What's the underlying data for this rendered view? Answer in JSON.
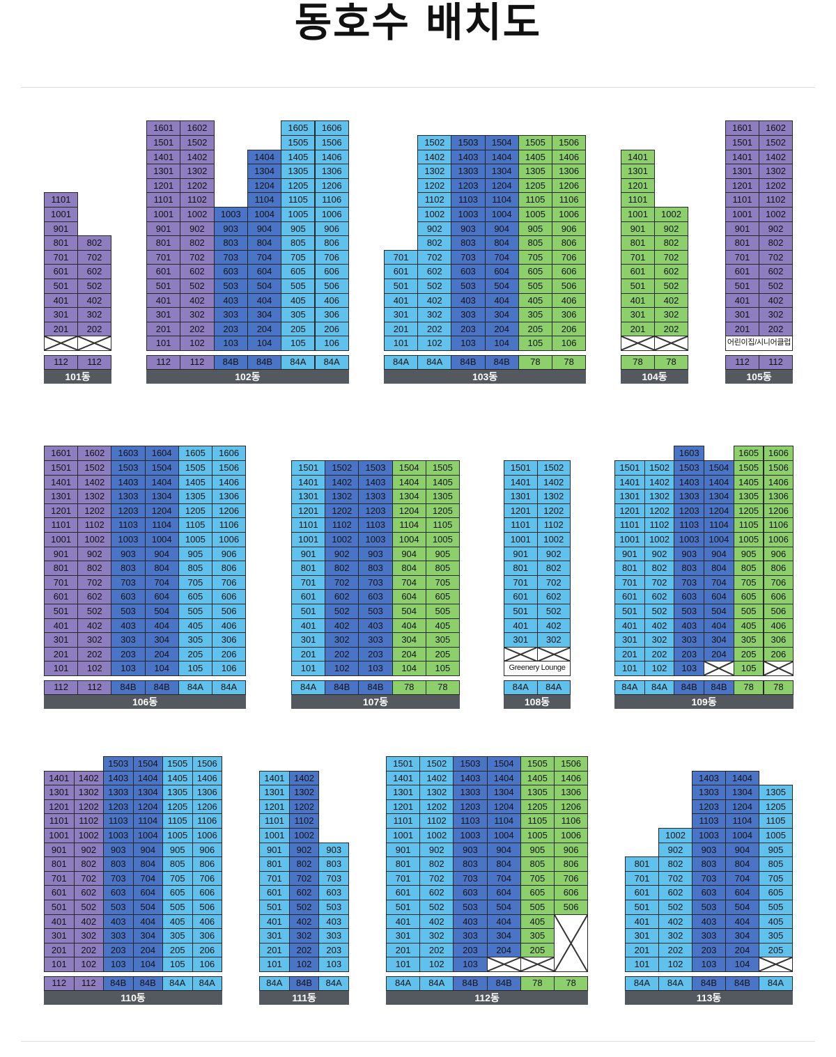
{
  "title": "동호수 배치도",
  "colors": {
    "p": "#8e7dbf",
    "d": "#4a75c6",
    "l": "#5fc1ec",
    "g": "#8ccf6b"
  },
  "buildings": [
    {
      "name": "101동",
      "cols": 2,
      "floors": 11,
      "units": [
        [
          "p",
          "p"
        ],
        [
          "p",
          "p"
        ]
      ],
      "heights": [
        11,
        8
      ],
      "overrides": {
        "1-0": "x",
        "1-1": "x"
      },
      "types": [
        "112",
        "112"
      ]
    },
    {
      "name": "102동",
      "cols": 6,
      "floors": 16,
      "units": [
        [
          "p",
          "p",
          "d",
          "d",
          "l",
          "l"
        ]
      ],
      "heights": [
        16,
        16,
        10,
        14,
        16,
        16
      ],
      "overrides": {},
      "types": [
        "112",
        "112",
        "84B",
        "84B",
        "84A",
        "84A"
      ]
    },
    {
      "name": "103동",
      "cols": 6,
      "floors": 15,
      "units": [
        [
          "l",
          "l",
          "d",
          "d",
          "g",
          "g"
        ]
      ],
      "heights": [
        7,
        15,
        15,
        15,
        15,
        15
      ],
      "overrides": {},
      "types": [
        "84A",
        "84A",
        "84B",
        "84B",
        "78",
        "78"
      ]
    },
    {
      "name": "104동",
      "cols": 2,
      "floors": 14,
      "units": [
        [
          "g",
          "g"
        ]
      ],
      "heights": [
        14,
        10
      ],
      "overrides": {
        "1-0": "x",
        "1-1": "x"
      },
      "types": [
        "78",
        "78"
      ]
    },
    {
      "name": "105동",
      "cols": 2,
      "floors": 16,
      "units": [
        [
          "p",
          "p"
        ]
      ],
      "heights": [
        16,
        16
      ],
      "overrides": {},
      "spans": [
        {
          "floor": 1,
          "col": 0,
          "span": 2,
          "label": "어린이집/시니어클럽"
        }
      ],
      "types": [
        "112",
        "112"
      ]
    },
    {
      "name": "106동",
      "cols": 6,
      "floors": 16,
      "units": [
        [
          "p",
          "p",
          "d",
          "d",
          "l",
          "l"
        ]
      ],
      "heights": [
        16,
        16,
        16,
        16,
        16,
        16
      ],
      "overrides": {},
      "types": [
        "112",
        "112",
        "84B",
        "84B",
        "84A",
        "84A"
      ]
    },
    {
      "name": "107동",
      "cols": 5,
      "floors": 15,
      "units": [
        [
          "l",
          "d",
          "d",
          "g",
          "g"
        ]
      ],
      "heights": [
        15,
        15,
        15,
        15,
        15
      ],
      "overrides": {},
      "types": [
        "84A",
        "84B",
        "84B",
        "78",
        "78"
      ]
    },
    {
      "name": "108동",
      "cols": 2,
      "floors": 15,
      "units": [
        [
          "l",
          "l"
        ]
      ],
      "heights": [
        15,
        15
      ],
      "overrides": {
        "2-0": "x",
        "2-1": "x"
      },
      "spans": [
        {
          "floor": 1,
          "col": 0,
          "span": 2,
          "label": "Greenery Lounge"
        }
      ],
      "types": [
        "84A",
        "84A"
      ]
    },
    {
      "name": "109동",
      "cols": 6,
      "floors": 16,
      "units": [
        [
          "l",
          "l",
          "d",
          "d",
          "g",
          "g"
        ]
      ],
      "heights": [
        15,
        15,
        16,
        15,
        16,
        16
      ],
      "overrides": {
        "1-3": "x",
        "1-5": "x"
      },
      "types": [
        "84A",
        "84A",
        "84B",
        "84B",
        "78",
        "78"
      ]
    },
    {
      "name": "110동",
      "cols": 6,
      "floors": 15,
      "units": [
        [
          "p",
          "p",
          "d",
          "d",
          "l",
          "l"
        ]
      ],
      "heights": [
        14,
        14,
        15,
        15,
        15,
        15
      ],
      "overrides": {},
      "types": [
        "112",
        "112",
        "84B",
        "84B",
        "84A",
        "84A"
      ]
    },
    {
      "name": "111동",
      "cols": 3,
      "floors": 14,
      "units": [
        [
          "l",
          "d",
          "l"
        ]
      ],
      "heights": [
        14,
        14,
        9
      ],
      "overrides": {},
      "types": [
        "84A",
        "84B",
        "84A"
      ]
    },
    {
      "name": "112동",
      "cols": 6,
      "floors": 15,
      "units": [
        [
          "l",
          "l",
          "d",
          "d",
          "g",
          "g"
        ]
      ],
      "heights": [
        15,
        15,
        15,
        15,
        15,
        15
      ],
      "overrides": {
        "1-3": "x",
        "1-4": "x"
      },
      "bigx": {
        "col": 5,
        "from": 1,
        "to": 4
      },
      "types": [
        "84A",
        "84A",
        "84B",
        "84B",
        "78",
        "78"
      ]
    },
    {
      "name": "113동",
      "cols": 5,
      "floors": 14,
      "units": [
        [
          "l",
          "l",
          "d",
          "d",
          "l"
        ]
      ],
      "heights": [
        8,
        10,
        14,
        14,
        13
      ],
      "overrides": {
        "1-4": "x"
      },
      "types": [
        "84A",
        "84A",
        "84B",
        "84B",
        "84A"
      ]
    }
  ]
}
